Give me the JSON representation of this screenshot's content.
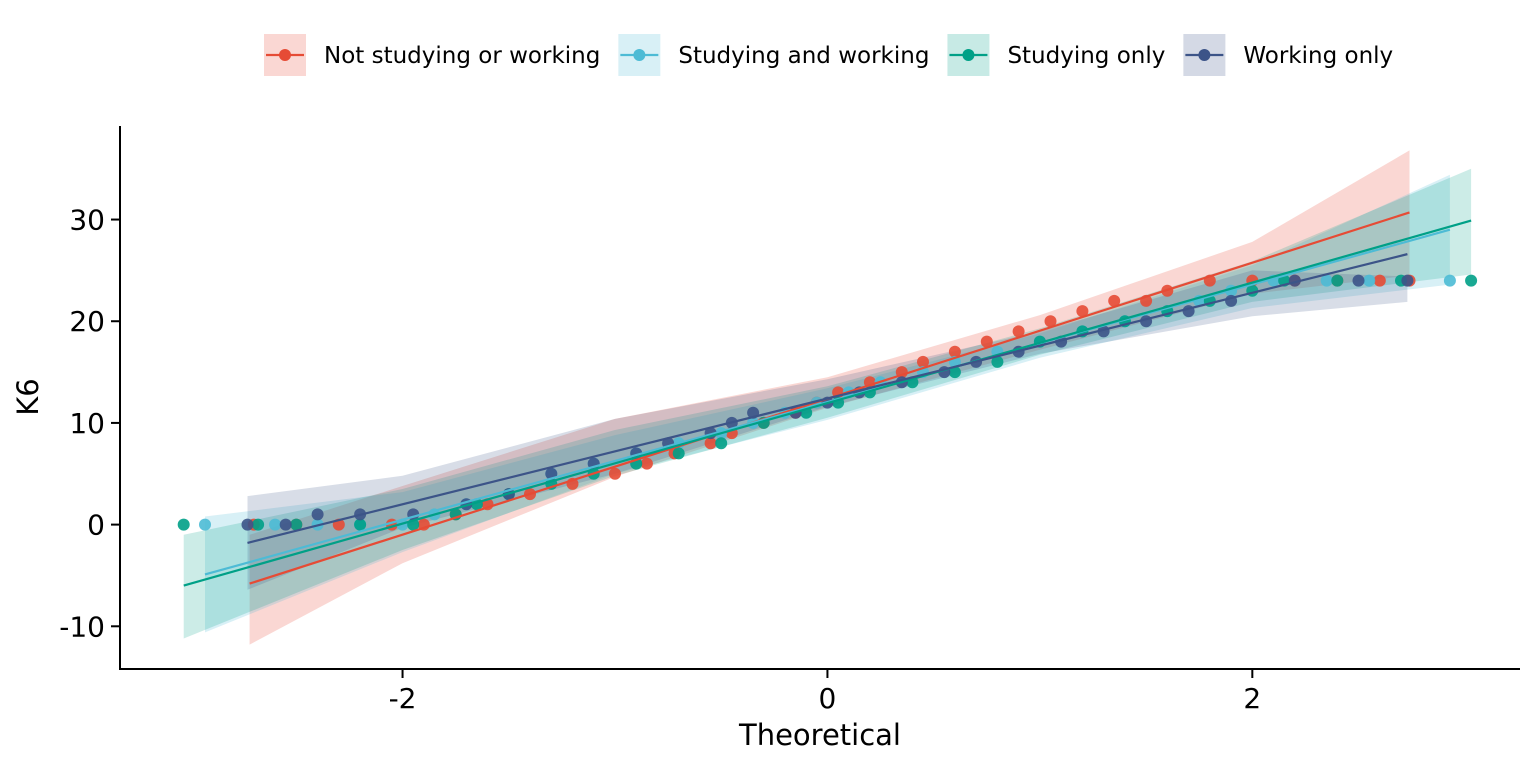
{
  "chart_data": {
    "type": "scatter",
    "subtype": "qq-plot",
    "title": "",
    "xlabel": "Theoretical",
    "ylabel": "K6",
    "xlim": [
      -3.33,
      3.26
    ],
    "ylim": [
      -14.2,
      39.2
    ],
    "xticks": [
      -2,
      0,
      2
    ],
    "yticks": [
      -10,
      0,
      10,
      20,
      30
    ],
    "grid": false,
    "legend_position": "top",
    "series": [
      {
        "name": "Not studying or working",
        "color": "#E64B35",
        "band_opacity": 0.22,
        "line": {
          "x": [
            -2.72,
            2.74
          ],
          "y": [
            -5.8,
            30.7
          ]
        },
        "band": {
          "x": [
            -2.72,
            -2.0,
            -1.0,
            0.0,
            1.0,
            2.0,
            2.74
          ],
          "upper": [
            -1.0,
            3.8,
            10.4,
            14.5,
            20.6,
            27.8,
            36.8
          ],
          "lower": [
            -11.8,
            -3.8,
            4.7,
            11.5,
            17.2,
            22.7,
            24.5
          ]
        },
        "points": [
          [
            -2.7,
            0
          ],
          [
            -2.5,
            0
          ],
          [
            -2.3,
            0
          ],
          [
            -2.05,
            0
          ],
          [
            -1.9,
            0
          ],
          [
            -1.75,
            1
          ],
          [
            -1.6,
            2
          ],
          [
            -1.4,
            3
          ],
          [
            -1.2,
            4
          ],
          [
            -1.0,
            5
          ],
          [
            -0.85,
            6
          ],
          [
            -0.72,
            7
          ],
          [
            -0.55,
            8
          ],
          [
            -0.45,
            9
          ],
          [
            -0.3,
            10
          ],
          [
            -0.15,
            11
          ],
          [
            -0.05,
            12
          ],
          [
            0.05,
            13
          ],
          [
            0.2,
            14
          ],
          [
            0.35,
            15
          ],
          [
            0.45,
            16
          ],
          [
            0.6,
            17
          ],
          [
            0.75,
            18
          ],
          [
            0.9,
            19
          ],
          [
            1.05,
            20
          ],
          [
            1.2,
            21
          ],
          [
            1.35,
            22
          ],
          [
            1.5,
            22
          ],
          [
            1.6,
            23
          ],
          [
            1.8,
            24
          ],
          [
            2.0,
            24
          ],
          [
            2.2,
            24
          ],
          [
            2.4,
            24
          ],
          [
            2.6,
            24
          ],
          [
            2.74,
            24
          ]
        ]
      },
      {
        "name": "Studying and working",
        "color": "#4DBBD5",
        "band_opacity": 0.22,
        "line": {
          "x": [
            -2.93,
            2.93
          ],
          "y": [
            -4.9,
            29.0
          ]
        },
        "band": {
          "x": [
            -2.93,
            -2.0,
            -1.0,
            0.0,
            1.0,
            2.0,
            2.93
          ],
          "upper": [
            0.8,
            3.2,
            8.8,
            13.4,
            18.8,
            25.5,
            34.4
          ],
          "lower": [
            -10.6,
            -2.7,
            5.0,
            10.3,
            16.4,
            21.3,
            23.6
          ]
        },
        "points": [
          [
            -2.93,
            0
          ],
          [
            -2.6,
            0
          ],
          [
            -2.4,
            0
          ],
          [
            -2.2,
            0
          ],
          [
            -2.0,
            0
          ],
          [
            -1.85,
            1
          ],
          [
            -1.7,
            2
          ],
          [
            -1.5,
            3
          ],
          [
            -1.3,
            5
          ],
          [
            -1.1,
            6
          ],
          [
            -0.9,
            7
          ],
          [
            -0.7,
            8
          ],
          [
            -0.5,
            9
          ],
          [
            -0.35,
            10
          ],
          [
            -0.2,
            11
          ],
          [
            -0.05,
            12
          ],
          [
            0.1,
            13
          ],
          [
            0.25,
            14
          ],
          [
            0.45,
            15
          ],
          [
            0.6,
            16
          ],
          [
            0.8,
            17
          ],
          [
            1.0,
            18
          ],
          [
            1.2,
            19
          ],
          [
            1.4,
            20
          ],
          [
            1.6,
            21
          ],
          [
            1.75,
            22
          ],
          [
            1.9,
            23
          ],
          [
            2.1,
            24
          ],
          [
            2.35,
            24
          ],
          [
            2.55,
            24
          ],
          [
            2.93,
            24
          ]
        ]
      },
      {
        "name": "Studying only",
        "color": "#00A087",
        "band_opacity": 0.2,
        "line": {
          "x": [
            -3.03,
            3.03
          ],
          "y": [
            -6.0,
            29.9
          ]
        },
        "band": {
          "x": [
            -3.03,
            -2.0,
            -1.0,
            0.0,
            1.0,
            2.0,
            3.03
          ],
          "upper": [
            -1.0,
            3.5,
            9.3,
            13.6,
            19.3,
            25.9,
            35.0
          ],
          "lower": [
            -11.2,
            -2.5,
            4.8,
            10.5,
            16.7,
            21.9,
            24.6
          ]
        },
        "points": [
          [
            -3.03,
            0
          ],
          [
            -2.68,
            0
          ],
          [
            -2.5,
            0
          ],
          [
            -2.2,
            0
          ],
          [
            -1.95,
            0
          ],
          [
            -1.75,
            1
          ],
          [
            -1.65,
            2
          ],
          [
            -1.5,
            3
          ],
          [
            -1.3,
            4
          ],
          [
            -1.1,
            5
          ],
          [
            -0.9,
            6
          ],
          [
            -0.7,
            7
          ],
          [
            -0.5,
            8
          ],
          [
            -0.3,
            10
          ],
          [
            -0.1,
            11
          ],
          [
            0.05,
            12
          ],
          [
            0.2,
            13
          ],
          [
            0.4,
            14
          ],
          [
            0.6,
            15
          ],
          [
            0.8,
            16
          ],
          [
            1.0,
            18
          ],
          [
            1.2,
            19
          ],
          [
            1.4,
            20
          ],
          [
            1.6,
            21
          ],
          [
            1.8,
            22
          ],
          [
            2.0,
            23
          ],
          [
            2.15,
            24
          ],
          [
            2.4,
            24
          ],
          [
            2.7,
            24
          ],
          [
            3.03,
            24
          ]
        ]
      },
      {
        "name": "Working only",
        "color": "#3C5488",
        "band_opacity": 0.2,
        "line": {
          "x": [
            -2.73,
            2.73
          ],
          "y": [
            -1.8,
            26.6
          ]
        },
        "band": {
          "x": [
            -2.73,
            -2.0,
            -1.0,
            0.0,
            1.0,
            2.0,
            2.73
          ],
          "upper": [
            2.8,
            4.8,
            10.4,
            14.3,
            19.0,
            25.0,
            24.4
          ],
          "lower": [
            -6.4,
            -0.3,
            5.0,
            11.6,
            16.8,
            20.5,
            21.9
          ]
        },
        "points": [
          [
            -2.73,
            0
          ],
          [
            -2.55,
            0
          ],
          [
            -2.4,
            1
          ],
          [
            -2.2,
            1
          ],
          [
            -1.95,
            1
          ],
          [
            -1.7,
            2
          ],
          [
            -1.5,
            3
          ],
          [
            -1.3,
            5
          ],
          [
            -1.1,
            6
          ],
          [
            -0.9,
            7
          ],
          [
            -0.75,
            8
          ],
          [
            -0.55,
            9
          ],
          [
            -0.45,
            10
          ],
          [
            -0.35,
            11
          ],
          [
            -0.15,
            11
          ],
          [
            0.0,
            12
          ],
          [
            0.15,
            13
          ],
          [
            0.35,
            14
          ],
          [
            0.55,
            15
          ],
          [
            0.7,
            16
          ],
          [
            0.9,
            17
          ],
          [
            1.1,
            18
          ],
          [
            1.3,
            19
          ],
          [
            1.5,
            20
          ],
          [
            1.7,
            21
          ],
          [
            1.9,
            22
          ],
          [
            2.2,
            24
          ],
          [
            2.5,
            24
          ],
          [
            2.73,
            24
          ]
        ]
      }
    ]
  }
}
